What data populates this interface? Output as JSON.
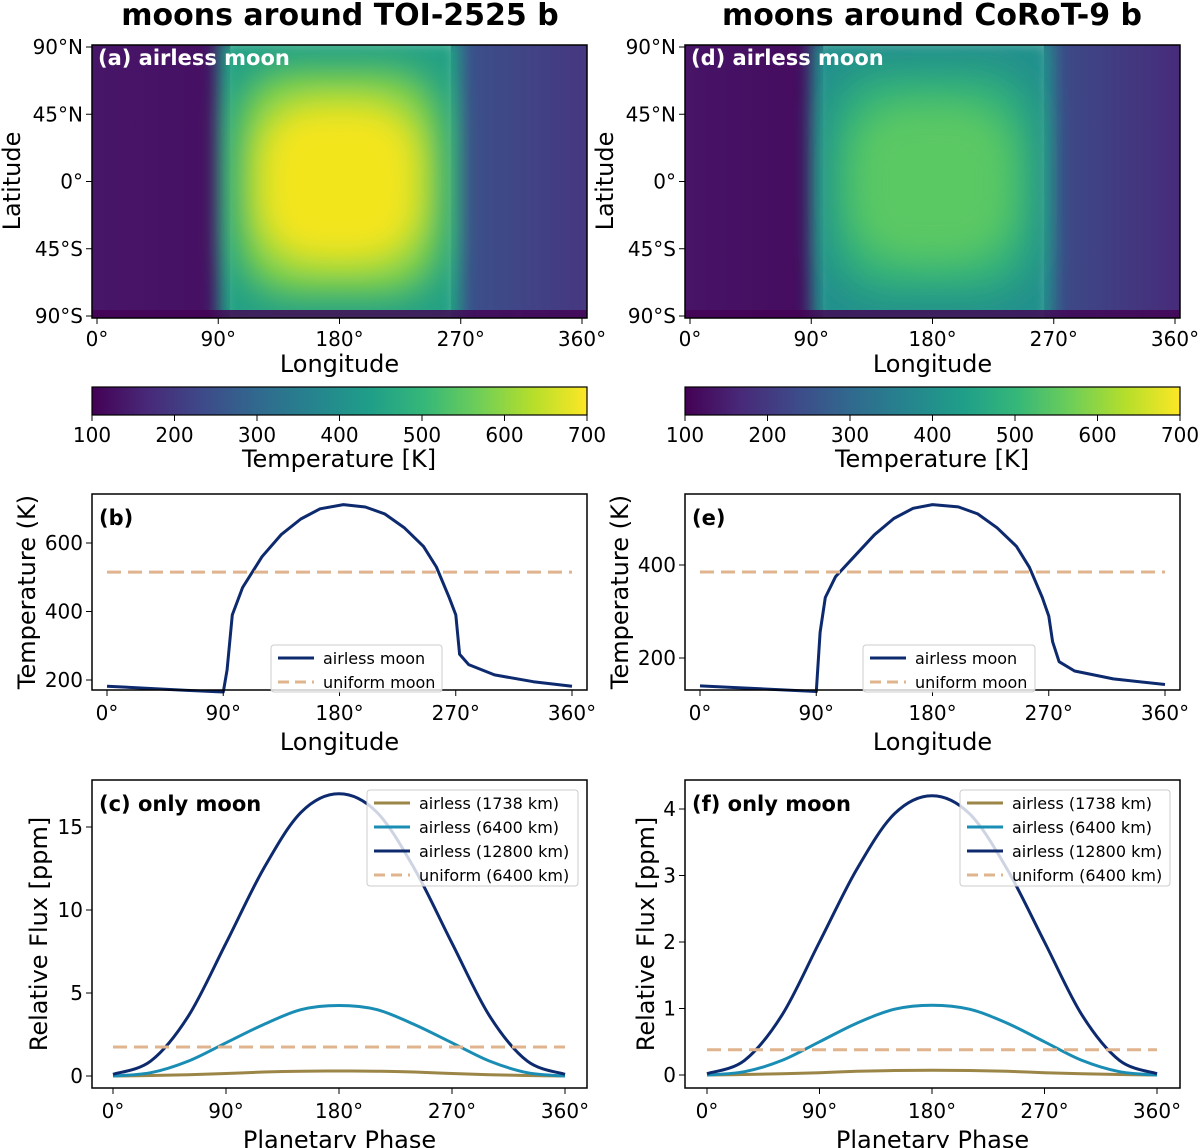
{
  "titles": [
    "moons around TOI-2525 b",
    "moons around CoRoT-9 b"
  ],
  "chart_data": [
    {
      "panel": "a",
      "type": "heatmap",
      "label": "(a) airless moon",
      "xlabel": "Longitude",
      "ylabel": "Latitude",
      "xticks": [
        "0°",
        "90°",
        "180°",
        "270°",
        "360°"
      ],
      "yticks": [
        "90°N",
        "45°N",
        "0°",
        "45°S",
        "90°S"
      ],
      "colorbar": {
        "label": "Temperature [K]",
        "ticks": [
          100,
          200,
          300,
          400,
          500,
          600,
          700
        ],
        "range": [
          100,
          700
        ],
        "colormap": "viridis"
      },
      "dayside_peak_K": 712,
      "nightside_K": [
        160,
        260
      ]
    },
    {
      "panel": "d",
      "type": "heatmap",
      "label": "(d) airless moon",
      "xlabel": "Longitude",
      "ylabel": "Latitude",
      "xticks": [
        "0°",
        "90°",
        "180°",
        "270°",
        "360°"
      ],
      "yticks": [
        "90°N",
        "45°N",
        "0°",
        "45°S",
        "90°S"
      ],
      "colorbar": {
        "label": "Temperature [K]",
        "ticks": [
          100,
          200,
          300,
          400,
          500,
          600,
          700
        ],
        "range": [
          100,
          700
        ],
        "colormap": "viridis"
      },
      "dayside_peak_K": 530,
      "nightside_K": [
        130,
        230
      ]
    },
    {
      "panel": "b",
      "type": "line",
      "label": "(b)",
      "xlabel": "Longitude",
      "ylabel": "Temperature (K)",
      "xticks": [
        "0°",
        "90°",
        "180°",
        "270°",
        "360°"
      ],
      "yticks": [
        200,
        400,
        600
      ],
      "legend": "lower-center",
      "series": [
        {
          "name": "airless moon",
          "color": "#0d2a6e",
          "dash": false,
          "x": [
            0,
            30,
            60,
            90,
            93,
            97,
            105,
            120,
            135,
            150,
            165,
            183,
            200,
            215,
            230,
            245,
            255,
            265,
            270,
            273,
            280,
            300,
            330,
            360
          ],
          "y": [
            182,
            176,
            170,
            165,
            230,
            390,
            470,
            560,
            625,
            670,
            700,
            712,
            705,
            685,
            645,
            590,
            530,
            440,
            390,
            275,
            245,
            215,
            195,
            182
          ]
        },
        {
          "name": "uniform moon",
          "color": "#dfb48e",
          "dash": true,
          "x": [
            0,
            360
          ],
          "y": [
            515,
            515
          ]
        }
      ]
    },
    {
      "panel": "e",
      "type": "line",
      "label": "(e)",
      "xlabel": "Longitude",
      "ylabel": "Temperature (K)",
      "xticks": [
        "0°",
        "90°",
        "180°",
        "270°",
        "360°"
      ],
      "yticks": [
        200,
        400
      ],
      "legend": "lower-center",
      "series": [
        {
          "name": "airless moon",
          "color": "#0d2a6e",
          "dash": false,
          "x": [
            0,
            30,
            60,
            90,
            93,
            97,
            105,
            120,
            135,
            150,
            165,
            180,
            200,
            215,
            230,
            245,
            255,
            265,
            270,
            273,
            278,
            290,
            320,
            360
          ],
          "y": [
            140,
            136,
            132,
            128,
            255,
            330,
            375,
            420,
            465,
            500,
            522,
            530,
            525,
            510,
            480,
            440,
            395,
            330,
            290,
            235,
            192,
            172,
            155,
            143
          ]
        },
        {
          "name": "uniform moon",
          "color": "#dfb48e",
          "dash": true,
          "x": [
            0,
            360
          ],
          "y": [
            385,
            385
          ]
        }
      ]
    },
    {
      "panel": "c",
      "type": "line",
      "label": "(c) only moon",
      "xlabel": "Planetary Phase",
      "ylabel": "Relative Flux [ppm]",
      "xticks": [
        "0°",
        "90°",
        "180°",
        "270°",
        "360°"
      ],
      "yticks": [
        0,
        5,
        10,
        15
      ],
      "legend": "upper-right",
      "series": [
        {
          "name": "airless (1738 km)",
          "color": "#9b8647",
          "dash": false,
          "x": [
            0,
            30,
            60,
            90,
            120,
            150,
            180,
            210,
            240,
            270,
            300,
            330,
            360
          ],
          "y": [
            0,
            0.03,
            0.08,
            0.15,
            0.24,
            0.29,
            0.3,
            0.29,
            0.24,
            0.15,
            0.08,
            0.03,
            0
          ]
        },
        {
          "name": "airless (6400 km)",
          "color": "#1a8db5",
          "dash": false,
          "x": [
            0,
            30,
            60,
            90,
            120,
            150,
            180,
            210,
            240,
            270,
            300,
            330,
            360
          ],
          "y": [
            0,
            0.2,
            0.9,
            2.0,
            3.1,
            4.0,
            4.25,
            4.0,
            3.1,
            2.0,
            0.9,
            0.2,
            0
          ]
        },
        {
          "name": "airless (12800 km)",
          "color": "#0d2a6e",
          "dash": false,
          "x": [
            0,
            30,
            60,
            90,
            120,
            150,
            180,
            210,
            240,
            270,
            300,
            330,
            360
          ],
          "y": [
            0.1,
            0.9,
            3.6,
            8.0,
            12.5,
            15.9,
            17.0,
            15.9,
            12.5,
            8.0,
            3.6,
            0.9,
            0.1
          ]
        },
        {
          "name": "uniform (6400 km)",
          "color": "#dfb48e",
          "dash": true,
          "x": [
            0,
            360
          ],
          "y": [
            1.75,
            1.75
          ]
        }
      ]
    },
    {
      "panel": "f",
      "type": "line",
      "label": "(f) only moon",
      "xlabel": "Planetary Phase",
      "ylabel": "Relative Flux [ppm]",
      "xticks": [
        "0°",
        "90°",
        "180°",
        "270°",
        "360°"
      ],
      "yticks": [
        0,
        1,
        2,
        3,
        4
      ],
      "legend": "upper-right",
      "series": [
        {
          "name": "airless (1738 km)",
          "color": "#9b8647",
          "dash": false,
          "x": [
            0,
            30,
            60,
            90,
            120,
            150,
            180,
            210,
            240,
            270,
            300,
            330,
            360
          ],
          "y": [
            0,
            0.008,
            0.02,
            0.035,
            0.055,
            0.068,
            0.07,
            0.068,
            0.055,
            0.035,
            0.02,
            0.008,
            0
          ]
        },
        {
          "name": "airless (6400 km)",
          "color": "#1a8db5",
          "dash": false,
          "x": [
            0,
            30,
            60,
            90,
            120,
            150,
            180,
            210,
            240,
            270,
            300,
            330,
            360
          ],
          "y": [
            0,
            0.05,
            0.22,
            0.5,
            0.78,
            0.99,
            1.05,
            0.99,
            0.78,
            0.5,
            0.22,
            0.05,
            0
          ]
        },
        {
          "name": "airless (12800 km)",
          "color": "#0d2a6e",
          "dash": false,
          "x": [
            0,
            30,
            60,
            90,
            120,
            150,
            180,
            210,
            240,
            270,
            300,
            330,
            360
          ],
          "y": [
            0.02,
            0.22,
            0.9,
            2.0,
            3.1,
            3.93,
            4.2,
            3.93,
            3.1,
            2.0,
            0.9,
            0.22,
            0.02
          ]
        },
        {
          "name": "uniform (6400 km)",
          "color": "#dfb48e",
          "dash": true,
          "x": [
            0,
            360
          ],
          "y": [
            0.38,
            0.38
          ]
        }
      ]
    }
  ]
}
